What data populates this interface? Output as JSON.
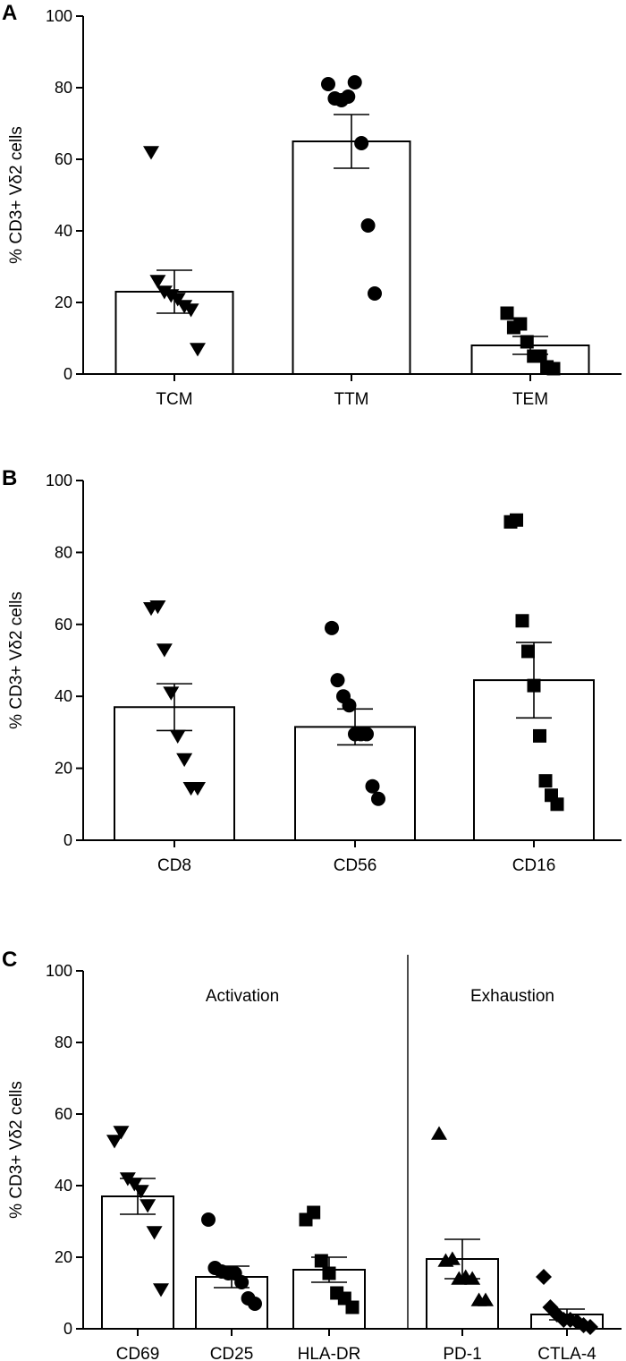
{
  "chart_data": [
    {
      "type": "bar",
      "panel": "A",
      "ylabel": "% CD3+ Vδ2 cells",
      "ylim": [
        0,
        100
      ],
      "yticks": [
        0,
        20,
        40,
        60,
        80,
        100
      ],
      "categories": [
        "TCM",
        "TTM",
        "TEM"
      ],
      "markers": [
        "triangle-down",
        "circle",
        "square"
      ],
      "values": [
        23,
        65,
        8
      ],
      "sem": [
        6,
        7.5,
        2.5
      ],
      "points": [
        [
          62,
          26,
          23,
          22,
          21,
          19,
          18,
          7
        ],
        [
          81,
          77,
          76.5,
          77.5,
          81.5,
          64.5,
          41.5,
          22.5
        ],
        [
          17,
          13,
          14,
          9,
          5,
          5,
          2,
          1.5
        ]
      ],
      "annotations": []
    },
    {
      "type": "bar",
      "panel": "B",
      "ylabel": "% CD3+ Vδ2 cells",
      "ylim": [
        0,
        100
      ],
      "yticks": [
        0,
        20,
        40,
        60,
        80,
        100
      ],
      "categories": [
        "CD8",
        "CD56",
        "CD16"
      ],
      "markers": [
        "triangle-down",
        "circle",
        "square"
      ],
      "values": [
        37,
        31.5,
        44.5
      ],
      "sem": [
        6.5,
        5,
        10.5
      ],
      "points": [
        [
          64.5,
          65,
          53,
          41,
          29,
          22.5,
          14.5,
          14.5
        ],
        [
          59,
          44.5,
          40,
          37.5,
          29.5,
          29.5,
          29.5,
          15,
          11.5
        ],
        [
          88.5,
          89,
          61,
          52.5,
          43,
          29,
          16.5,
          12.5,
          10
        ]
      ],
      "annotations": []
    },
    {
      "type": "bar",
      "panel": "C",
      "ylabel": "% CD3+ Vδ2 cells",
      "ylim": [
        0,
        100
      ],
      "yticks": [
        0,
        20,
        40,
        60,
        80,
        100
      ],
      "categories": [
        "CD69",
        "CD25",
        "HLA-DR",
        "PD-1",
        "CTLA-4"
      ],
      "markers": [
        "triangle-down",
        "circle",
        "square",
        "triangle-up",
        "diamond"
      ],
      "values": [
        37,
        14.5,
        16.5,
        19.5,
        4
      ],
      "sem": [
        5,
        3,
        3.5,
        5.5,
        1.5
      ],
      "points": [
        [
          52.5,
          55,
          42,
          40.5,
          38.5,
          34.5,
          27,
          11
        ],
        [
          30.5,
          17,
          16,
          15.5,
          15.5,
          13,
          8.5,
          7
        ],
        [
          30.5,
          32.5,
          19,
          15.5,
          10,
          8.5,
          6
        ],
        [
          54.5,
          19,
          19.5,
          14,
          14.5,
          14,
          8,
          8
        ],
        [
          14.5,
          6,
          4,
          2.5,
          2.5,
          2,
          1,
          0.5
        ]
      ],
      "annotations": [
        "Activation",
        "Exhaustion"
      ]
    }
  ]
}
